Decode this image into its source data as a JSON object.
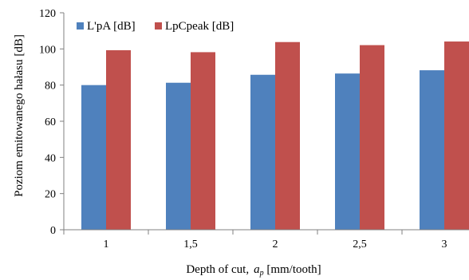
{
  "chart_data": {
    "type": "bar",
    "title": "",
    "xlabel": "Depth of cut,",
    "xlabel_symbol": "a",
    "xlabel_subscript": "p",
    "xlabel_unit": " [mm/tooth]",
    "ylabel": "Poziom emitowanego hałasu [dB]",
    "ylim": [
      0,
      120
    ],
    "ytick_step": 20,
    "categories": [
      "1",
      "1,5",
      "2",
      "2,5",
      "3"
    ],
    "series": [
      {
        "name": "L'pA [dB]",
        "color": "#4F81BD",
        "values": [
          80,
          81.3,
          85.7,
          86.4,
          88.2
        ]
      },
      {
        "name": "LpCpeak [dB]",
        "color": "#C0504D",
        "values": [
          99.3,
          98.2,
          103.8,
          102.1,
          104.1
        ]
      }
    ],
    "legend_position": "top-left",
    "grid": false
  }
}
